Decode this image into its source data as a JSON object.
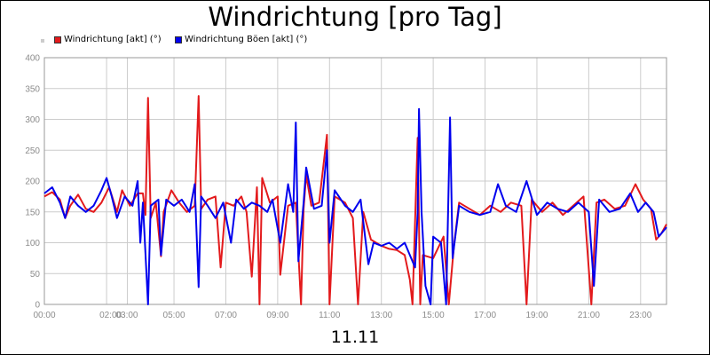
{
  "title": "Windrichtung [pro Tag]",
  "footer_date": "11.11",
  "legend": [
    {
      "label": "Windrichtung [akt] (°)",
      "color": "#e31a1c"
    },
    {
      "label": "Windrichtung Böen [akt] (°)",
      "color": "#0000ee"
    }
  ],
  "chart_data": {
    "type": "line",
    "title": "Windrichtung [pro Tag]",
    "xlabel": "11.11",
    "ylabel": "",
    "ylim": [
      0,
      400
    ],
    "yticks": [
      0,
      50,
      100,
      150,
      200,
      250,
      300,
      350,
      400
    ],
    "xlim": [
      0,
      24
    ],
    "xticks": [
      {
        "t": 0,
        "label": "00:00"
      },
      {
        "t": 2.4,
        "label": "02:00"
      },
      {
        "t": 3.2,
        "label": "03:00"
      },
      {
        "t": 5,
        "label": "05:00"
      },
      {
        "t": 7,
        "label": "07:00"
      },
      {
        "t": 9,
        "label": "09:00"
      },
      {
        "t": 11,
        "label": "11:00"
      },
      {
        "t": 13,
        "label": "13:00"
      },
      {
        "t": 15,
        "label": "15:00"
      },
      {
        "t": 17,
        "label": "17:00"
      },
      {
        "t": 19,
        "label": "19:00"
      },
      {
        "t": 21,
        "label": "21:00"
      },
      {
        "t": 23,
        "label": "23:00"
      }
    ],
    "grid": true,
    "legend_position": "top-left",
    "series": [
      {
        "name": "Windrichtung [akt] (°)",
        "color": "#e31a1c",
        "points": [
          [
            0,
            175
          ],
          [
            0.3,
            182
          ],
          [
            0.6,
            170
          ],
          [
            0.8,
            140
          ],
          [
            1.0,
            160
          ],
          [
            1.3,
            178
          ],
          [
            1.6,
            155
          ],
          [
            1.9,
            150
          ],
          [
            2.2,
            165
          ],
          [
            2.5,
            190
          ],
          [
            2.8,
            150
          ],
          [
            3.0,
            185
          ],
          [
            3.3,
            160
          ],
          [
            3.6,
            180
          ],
          [
            3.8,
            180
          ],
          [
            3.9,
            145
          ],
          [
            4.0,
            335
          ],
          [
            4.1,
            140
          ],
          [
            4.3,
            165
          ],
          [
            4.5,
            78
          ],
          [
            4.6,
            150
          ],
          [
            4.9,
            185
          ],
          [
            5.2,
            165
          ],
          [
            5.5,
            150
          ],
          [
            5.8,
            160
          ],
          [
            5.95,
            338
          ],
          [
            6.05,
            155
          ],
          [
            6.3,
            170
          ],
          [
            6.6,
            175
          ],
          [
            6.8,
            60
          ],
          [
            7.0,
            165
          ],
          [
            7.3,
            160
          ],
          [
            7.6,
            175
          ],
          [
            7.8,
            150
          ],
          [
            8.0,
            45
          ],
          [
            8.2,
            190
          ],
          [
            8.3,
            0
          ],
          [
            8.4,
            205
          ],
          [
            8.7,
            165
          ],
          [
            9.0,
            175
          ],
          [
            9.1,
            48
          ],
          [
            9.4,
            160
          ],
          [
            9.7,
            165
          ],
          [
            9.9,
            0
          ],
          [
            10.0,
            155
          ],
          [
            10.1,
            210
          ],
          [
            10.3,
            160
          ],
          [
            10.6,
            165
          ],
          [
            10.9,
            275
          ],
          [
            11.0,
            0
          ],
          [
            11.2,
            175
          ],
          [
            11.6,
            165
          ],
          [
            11.9,
            140
          ],
          [
            12.1,
            0
          ],
          [
            12.3,
            150
          ],
          [
            12.6,
            105
          ],
          [
            13.0,
            95
          ],
          [
            13.3,
            90
          ],
          [
            13.6,
            88
          ],
          [
            13.9,
            80
          ],
          [
            14.1,
            40
          ],
          [
            14.2,
            0
          ],
          [
            14.4,
            270
          ],
          [
            14.5,
            0
          ],
          [
            14.6,
            80
          ],
          [
            15.0,
            75
          ],
          [
            15.4,
            110
          ],
          [
            15.6,
            0
          ],
          [
            15.8,
            95
          ],
          [
            16.0,
            165
          ],
          [
            16.4,
            155
          ],
          [
            16.8,
            145
          ],
          [
            17.2,
            160
          ],
          [
            17.6,
            150
          ],
          [
            18.0,
            165
          ],
          [
            18.4,
            160
          ],
          [
            18.6,
            0
          ],
          [
            18.8,
            170
          ],
          [
            19.2,
            150
          ],
          [
            19.6,
            165
          ],
          [
            20.0,
            145
          ],
          [
            20.4,
            160
          ],
          [
            20.8,
            175
          ],
          [
            21.1,
            0
          ],
          [
            21.3,
            165
          ],
          [
            21.6,
            170
          ],
          [
            22.0,
            155
          ],
          [
            22.4,
            160
          ],
          [
            22.8,
            195
          ],
          [
            23.1,
            170
          ],
          [
            23.4,
            155
          ],
          [
            23.6,
            105
          ],
          [
            23.8,
            115
          ],
          [
            24.0,
            130
          ]
        ]
      },
      {
        "name": "Windrichtung Böen [akt] (°)",
        "color": "#0000ee",
        "points": [
          [
            0,
            180
          ],
          [
            0.3,
            190
          ],
          [
            0.6,
            165
          ],
          [
            0.8,
            140
          ],
          [
            1.0,
            175
          ],
          [
            1.3,
            160
          ],
          [
            1.6,
            150
          ],
          [
            1.9,
            160
          ],
          [
            2.2,
            185
          ],
          [
            2.4,
            205
          ],
          [
            2.6,
            175
          ],
          [
            2.8,
            140
          ],
          [
            3.1,
            175
          ],
          [
            3.4,
            160
          ],
          [
            3.6,
            200
          ],
          [
            3.7,
            100
          ],
          [
            3.8,
            165
          ],
          [
            4.0,
            0
          ],
          [
            4.1,
            160
          ],
          [
            4.4,
            170
          ],
          [
            4.5,
            80
          ],
          [
            4.7,
            170
          ],
          [
            5.0,
            160
          ],
          [
            5.3,
            170
          ],
          [
            5.6,
            150
          ],
          [
            5.8,
            195
          ],
          [
            5.95,
            28
          ],
          [
            6.05,
            175
          ],
          [
            6.3,
            160
          ],
          [
            6.6,
            140
          ],
          [
            6.9,
            165
          ],
          [
            7.2,
            100
          ],
          [
            7.4,
            170
          ],
          [
            7.7,
            155
          ],
          [
            8.0,
            165
          ],
          [
            8.3,
            160
          ],
          [
            8.6,
            150
          ],
          [
            8.8,
            170
          ],
          [
            9.1,
            100
          ],
          [
            9.4,
            195
          ],
          [
            9.6,
            150
          ],
          [
            9.7,
            295
          ],
          [
            9.8,
            70
          ],
          [
            10.0,
            165
          ],
          [
            10.1,
            222
          ],
          [
            10.4,
            155
          ],
          [
            10.7,
            160
          ],
          [
            10.9,
            250
          ],
          [
            11.0,
            100
          ],
          [
            11.2,
            185
          ],
          [
            11.6,
            160
          ],
          [
            11.9,
            150
          ],
          [
            12.2,
            170
          ],
          [
            12.5,
            65
          ],
          [
            12.7,
            100
          ],
          [
            13.0,
            95
          ],
          [
            13.3,
            100
          ],
          [
            13.6,
            90
          ],
          [
            13.9,
            100
          ],
          [
            14.1,
            80
          ],
          [
            14.3,
            60
          ],
          [
            14.4,
            150
          ],
          [
            14.45,
            317
          ],
          [
            14.55,
            150
          ],
          [
            14.7,
            30
          ],
          [
            14.9,
            0
          ],
          [
            15.0,
            110
          ],
          [
            15.3,
            100
          ],
          [
            15.5,
            0
          ],
          [
            15.65,
            303
          ],
          [
            15.75,
            75
          ],
          [
            16.0,
            160
          ],
          [
            16.4,
            150
          ],
          [
            16.8,
            145
          ],
          [
            17.2,
            150
          ],
          [
            17.5,
            195
          ],
          [
            17.8,
            160
          ],
          [
            18.2,
            150
          ],
          [
            18.6,
            200
          ],
          [
            19.0,
            145
          ],
          [
            19.4,
            165
          ],
          [
            19.8,
            155
          ],
          [
            20.2,
            150
          ],
          [
            20.6,
            165
          ],
          [
            21.0,
            150
          ],
          [
            21.2,
            30
          ],
          [
            21.4,
            170
          ],
          [
            21.8,
            150
          ],
          [
            22.2,
            155
          ],
          [
            22.6,
            180
          ],
          [
            22.9,
            150
          ],
          [
            23.2,
            165
          ],
          [
            23.5,
            150
          ],
          [
            23.7,
            110
          ],
          [
            24.0,
            125
          ]
        ]
      }
    ]
  }
}
